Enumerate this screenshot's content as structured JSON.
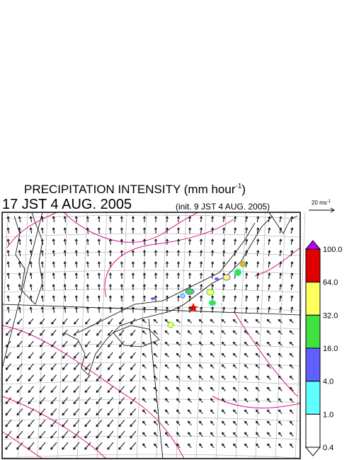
{
  "title": "PRECIPITATION INTENSITY (mm hour",
  "title_exponent": "-1",
  "title_close": ")",
  "valid_time": "17 JST 4 AUG. 2005",
  "init_time": "(init. 9 JST 4 AUG. 2005)",
  "wind_scale": {
    "label": "20 ms",
    "exponent": "-1"
  },
  "colorbar": [
    {
      "label": "100.0",
      "color": "#e00000"
    },
    {
      "label": "64.0",
      "color": "#ffa040"
    },
    {
      "label": "32.0",
      "color": "#ffff60"
    },
    {
      "label": "16.0",
      "color": "#40e040"
    },
    {
      "label": "4.0",
      "color": "#6060ff"
    },
    {
      "label": "1.0",
      "color": "#60ffff"
    },
    {
      "label": "0.4",
      "color": "#ffffff"
    }
  ]
}
